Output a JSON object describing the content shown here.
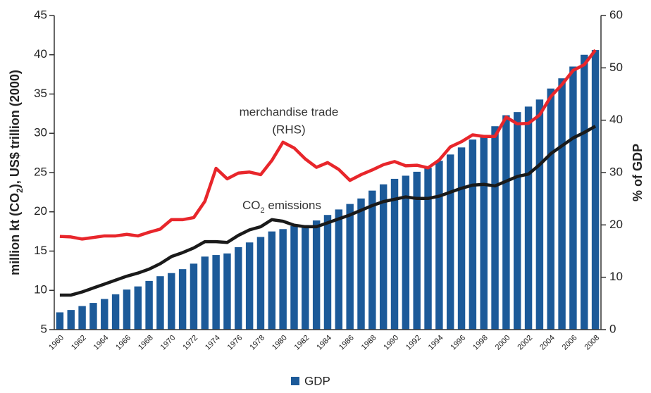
{
  "chart_data": {
    "type": "bar",
    "categories": [
      "1960",
      null,
      "1962",
      null,
      "1964",
      null,
      "1966",
      null,
      "1968",
      null,
      "1970",
      null,
      "1972",
      null,
      "1974",
      null,
      "1976",
      null,
      "1978",
      null,
      "1980",
      null,
      "1982",
      null,
      "1984",
      null,
      "1986",
      null,
      "1988",
      null,
      "1990",
      null,
      "1992",
      null,
      "1994",
      null,
      "1996",
      null,
      "1998",
      null,
      "2000",
      null,
      "2002",
      null,
      "2004",
      null,
      "2006",
      null,
      "2008"
    ],
    "series": [
      {
        "name": "GDP",
        "type": "bar",
        "color": "#1c5a99",
        "values": [
          7.2,
          7.5,
          8.0,
          8.4,
          8.9,
          9.5,
          10.1,
          10.5,
          11.2,
          11.8,
          12.2,
          12.7,
          13.4,
          14.3,
          14.5,
          14.7,
          15.5,
          16.1,
          16.8,
          17.5,
          17.8,
          18.2,
          18.3,
          18.9,
          19.6,
          20.3,
          21.0,
          21.7,
          22.7,
          23.5,
          24.2,
          24.6,
          25.1,
          25.6,
          26.5,
          27.3,
          28.2,
          29.2,
          29.8,
          30.9,
          32.3,
          32.7,
          33.4,
          34.3,
          35.7,
          37.0,
          38.5,
          40.0,
          40.6
        ]
      },
      {
        "type": "line",
        "color": "#1a1a1a",
        "values": [
          9.4,
          9.4,
          9.8,
          10.3,
          10.8,
          11.3,
          11.8,
          12.2,
          12.7,
          13.4,
          14.3,
          14.8,
          15.4,
          16.2,
          16.2,
          16.1,
          17.0,
          17.7,
          18.1,
          19.0,
          18.8,
          18.3,
          18.1,
          18.1,
          18.6,
          19.1,
          19.6,
          20.2,
          20.8,
          21.3,
          21.6,
          21.9,
          21.7,
          21.7,
          22.0,
          22.5,
          23.0,
          23.4,
          23.5,
          23.3,
          23.9,
          24.5,
          24.8,
          26.0,
          27.4,
          28.4,
          29.4,
          30.1,
          30.9
        ]
      },
      {
        "type": "line",
        "axis": "y2",
        "color": "#e8262b",
        "values": [
          17.8,
          17.7,
          17.3,
          17.6,
          17.9,
          17.9,
          18.2,
          17.9,
          18.6,
          19.2,
          21.0,
          21.0,
          21.4,
          24.5,
          30.8,
          28.8,
          29.9,
          30.1,
          29.6,
          32.3,
          35.8,
          34.7,
          32.6,
          31.0,
          31.9,
          30.6,
          28.5,
          29.6,
          30.5,
          31.5,
          32.1,
          31.3,
          31.4,
          30.9,
          32.4,
          34.9,
          35.9,
          37.2,
          36.9,
          36.9,
          40.6,
          39.3,
          39.4,
          41.0,
          44.5,
          46.8,
          49.5,
          50.6,
          53.4
        ]
      }
    ],
    "y_label": [
      "million kt (CO",
      "2",
      "),  US$ trillion (2000)"
    ],
    "y2_label": "% of GDP",
    "annotations": {
      "trade": [
        "merchandise trade",
        "(RHS)"
      ],
      "co2": [
        "CO",
        "2",
        " emissions"
      ]
    },
    "ylim": [
      5,
      45
    ],
    "yticks": [
      5,
      10,
      15,
      20,
      25,
      30,
      35,
      40,
      45
    ],
    "y2lim": [
      0,
      60
    ],
    "y2ticks": [
      0,
      10,
      20,
      30,
      40,
      50,
      60
    ],
    "legend": "bottom"
  }
}
